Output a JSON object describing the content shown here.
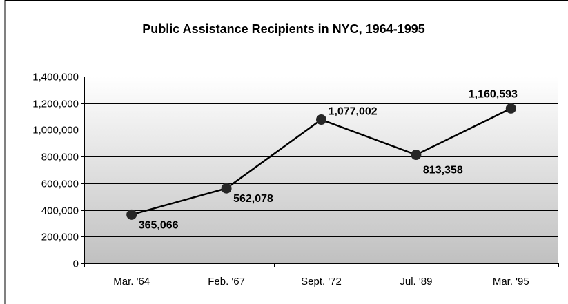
{
  "chart_data": {
    "type": "line",
    "title": "Public Assistance Recipients in NYC, 1964-1995",
    "xlabel": "",
    "ylabel": "",
    "categories": [
      "Mar. '64",
      "Feb. '67",
      "Sept. '72",
      "Jul. '89",
      "Mar. '95"
    ],
    "series": [
      {
        "values": [
          365066,
          562078,
          1077002,
          813358,
          1160593
        ],
        "labels": [
          "365,066",
          "562,078",
          "1,077,002",
          "813,358",
          "1,160,593"
        ]
      }
    ],
    "ylim": [
      0,
      1400000
    ],
    "y_ticks": [
      "0",
      "200,000",
      "400,000",
      "600,000",
      "800,000",
      "1,000,000",
      "1,200,000",
      "1,400,000"
    ],
    "grid": true,
    "legend": "none",
    "colors": {
      "line": "#000000",
      "marker": "#262626",
      "gridline": "#000000",
      "plot_gradient_top": "#ffffff",
      "plot_gradient_bottom": "#c0c0c0",
      "frame": "#000000"
    }
  }
}
